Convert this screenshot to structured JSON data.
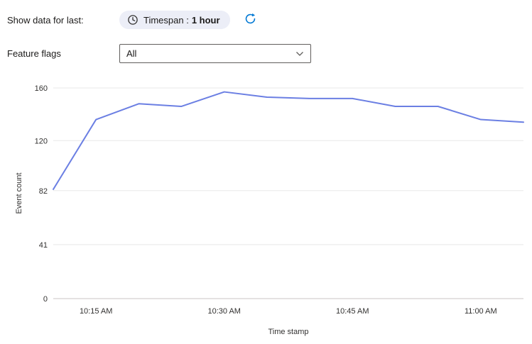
{
  "toolbar": {
    "show_data_label": "Show data for last:",
    "timespan_chip": {
      "prefix": "Timespan :",
      "value": "1 hour",
      "clock_icon": "clock-icon"
    },
    "refresh_icon": "refresh-icon"
  },
  "filters": {
    "feature_flags_label": "Feature flags",
    "feature_flags_value": "All",
    "chevron_icon": "chevron-down-icon"
  },
  "chart_data": {
    "type": "line",
    "title": "",
    "xlabel": "Time stamp",
    "ylabel": "Event count",
    "ylim": [
      0,
      160
    ],
    "yticks": [
      0,
      41,
      82,
      120,
      160
    ],
    "x": [
      "10:10 AM",
      "10:15 AM",
      "10:20 AM",
      "10:25 AM",
      "10:30 AM",
      "10:35 AM",
      "10:40 AM",
      "10:45 AM",
      "10:50 AM",
      "10:55 AM",
      "11:00 AM",
      "11:05 AM"
    ],
    "xtick_labels": [
      "10:15 AM",
      "10:30 AM",
      "10:45 AM",
      "11:00 AM"
    ],
    "series": [
      {
        "name": "Event count",
        "values": [
          83,
          136,
          148,
          146,
          157,
          153,
          152,
          152,
          146,
          146,
          136,
          134
        ]
      }
    ],
    "line_color": "#6b7fe3",
    "grid": true,
    "legend": false
  },
  "colors": {
    "accent": "#0078d4",
    "line": "#6b7fe3",
    "chip_bg": "#eceef7",
    "gridline": "#e8e8e8",
    "axis_line": "#c8c6c4",
    "tick_text": "#323130"
  }
}
